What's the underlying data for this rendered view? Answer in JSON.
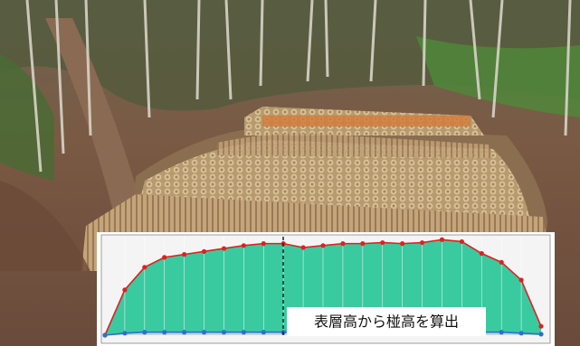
{
  "chart_data": {
    "type": "area",
    "categories": [
      null,
      null,
      null,
      null,
      null,
      null,
      null,
      null,
      null,
      null,
      null,
      null,
      null,
      null,
      null,
      null,
      null,
      null,
      null,
      null,
      null,
      null,
      null
    ],
    "series": [
      {
        "name": null,
        "color": "#e02020",
        "values": [
          0,
          46,
          69,
          79,
          82,
          85,
          88,
          91,
          93,
          93,
          89,
          91,
          93,
          93,
          94,
          93,
          94,
          97,
          95,
          83,
          74,
          56,
          9
        ]
      },
      {
        "name": null,
        "color": "#2a6fd6",
        "values": [
          0,
          2,
          3,
          3,
          3,
          3,
          3,
          3,
          3,
          3,
          3,
          3,
          3,
          3,
          3,
          3,
          3,
          3,
          3,
          3,
          3,
          2,
          1
        ]
      }
    ],
    "fill_color": "#2fc79a",
    "ylim": [
      0,
      100
    ],
    "annotation": "表層高から椪高を算出"
  }
}
